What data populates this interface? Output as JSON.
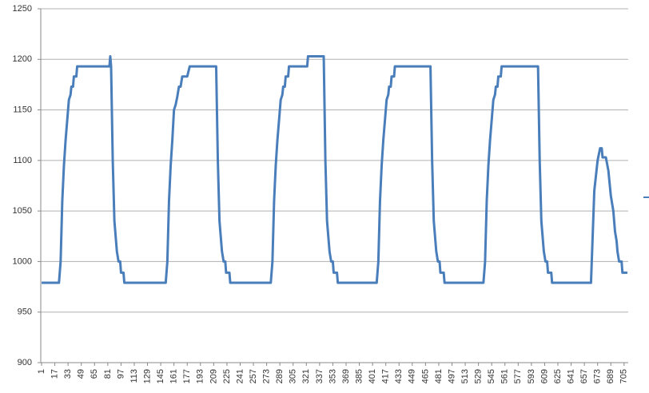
{
  "chart_data": {
    "type": "line",
    "color": "#4a7ebb",
    "grid": true,
    "x": [
      1,
      22,
      24,
      26,
      28,
      30,
      32,
      34,
      36,
      37,
      39,
      40,
      43,
      44,
      83,
      84,
      85,
      87,
      89,
      92,
      94,
      96,
      97,
      100,
      101,
      151,
      153,
      155,
      157,
      159,
      161,
      163,
      165,
      167,
      169,
      171,
      174,
      177,
      180,
      212,
      214,
      216,
      219,
      221,
      223,
      224,
      228,
      229,
      278,
      280,
      282,
      284,
      286,
      288,
      290,
      292,
      293,
      295,
      296,
      299,
      300,
      322,
      323,
      342,
      344,
      346,
      349,
      351,
      353,
      354,
      358,
      359,
      406,
      408,
      410,
      412,
      414,
      416,
      418,
      420,
      421,
      423,
      424,
      427,
      428,
      471,
      473,
      475,
      478,
      480,
      482,
      483,
      487,
      488,
      535,
      537,
      539,
      541,
      543,
      545,
      547,
      549,
      550,
      552,
      553,
      556,
      557,
      601,
      603,
      605,
      608,
      610,
      612,
      613,
      617,
      618,
      665,
      669,
      673,
      676,
      678,
      679,
      683,
      686,
      689,
      692,
      694,
      696,
      697,
      699,
      702,
      703,
      709
    ],
    "values": [
      979,
      979,
      1000,
      1060,
      1095,
      1120,
      1140,
      1160,
      1165,
      1173,
      1173,
      1183,
      1183,
      1193,
      1193,
      1203,
      1193,
      1100,
      1040,
      1010,
      1000,
      1000,
      989,
      989,
      979,
      979,
      1000,
      1060,
      1095,
      1120,
      1150,
      1155,
      1163,
      1173,
      1173,
      1183,
      1183,
      1183,
      1193,
      1193,
      1100,
      1040,
      1010,
      1000,
      1000,
      989,
      989,
      979,
      979,
      1000,
      1060,
      1095,
      1120,
      1140,
      1160,
      1165,
      1173,
      1173,
      1183,
      1183,
      1193,
      1193,
      1203,
      1203,
      1100,
      1040,
      1010,
      1000,
      1000,
      989,
      989,
      979,
      979,
      1000,
      1060,
      1095,
      1120,
      1140,
      1160,
      1165,
      1173,
      1173,
      1183,
      1183,
      1193,
      1193,
      1100,
      1040,
      1010,
      1000,
      1000,
      989,
      989,
      979,
      979,
      1000,
      1060,
      1095,
      1120,
      1140,
      1160,
      1165,
      1173,
      1173,
      1183,
      1183,
      1193,
      1193,
      1100,
      1040,
      1010,
      1000,
      1000,
      989,
      989,
      979,
      979,
      1070,
      1100,
      1112,
      1112,
      1103,
      1103,
      1090,
      1065,
      1050,
      1030,
      1020,
      1010,
      1000,
      1000,
      989,
      989
    ],
    "xlim": [
      0,
      710
    ],
    "xticks": [
      1,
      17,
      33,
      49,
      65,
      81,
      97,
      113,
      129,
      145,
      161,
      177,
      193,
      209,
      225,
      241,
      257,
      273,
      289,
      305,
      321,
      337,
      353,
      369,
      385,
      401,
      417,
      433,
      449,
      465,
      481,
      497,
      513,
      529,
      545,
      561,
      577,
      593,
      609,
      625,
      641,
      657,
      673,
      689,
      705
    ],
    "ylim": [
      900,
      1250
    ],
    "yticks": [
      900,
      950,
      1000,
      1050,
      1100,
      1150,
      1200,
      1250
    ]
  }
}
